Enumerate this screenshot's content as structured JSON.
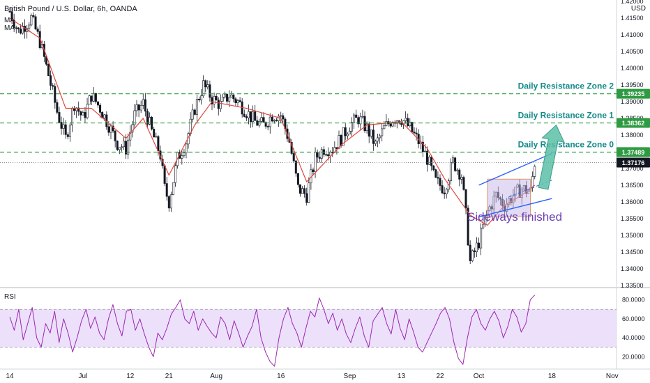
{
  "header": {
    "symbol_title": "British Pound / U.S. Dollar, 6h, OANDA",
    "currency": "USD",
    "indicator_main": "MA",
    "indicator_main2": "MA",
    "indicator_sub": "RSI"
  },
  "colors": {
    "up": "#131722",
    "down": "#131722",
    "ma": "#e0463b",
    "rsi": "#9c27b0",
    "rsi_band": "#ece0fb",
    "resistance": "#2e9b42",
    "annotation": "#138a8a",
    "sideways_text": "#6a3fb5",
    "channel": "#2962ff",
    "arrow": "#5bbfa6",
    "box_fill": "#c7b8e8",
    "box_stroke": "#e0956b"
  },
  "chart_data": [
    {
      "type": "candlestick",
      "title": "British Pound / U.S. Dollar, 6h, OANDA",
      "y_range": [
        1.33385,
        1.42
      ],
      "y_ticks": [
        "1.42000",
        "1.41500",
        "1.41000",
        "1.40500",
        "1.40000",
        "1.39500",
        "1.39000",
        "1.38500",
        "1.38000",
        "1.37500",
        "1.37000",
        "1.36500",
        "1.36000",
        "1.35500",
        "1.35000",
        "1.34500",
        "1.34000",
        "1.33500"
      ],
      "x_ticks": [
        "14",
        "Jul",
        "12",
        "21",
        "Aug",
        "16",
        "Sep",
        "13",
        "22",
        "Oct",
        "18",
        "Nov"
      ],
      "price_path": [
        {
          "x": "Jun 14",
          "y": 1.417
        },
        {
          "x": "Jun 16",
          "y": 1.411
        },
        {
          "x": "Jun 19",
          "y": 1.415
        },
        {
          "x": "Jun 21",
          "y": 1.408
        },
        {
          "x": "Jun 23",
          "y": 1.398
        },
        {
          "x": "Jun 25",
          "y": 1.387
        },
        {
          "x": "Jun 27",
          "y": 1.379
        },
        {
          "x": "Jun 29",
          "y": 1.3895
        },
        {
          "x": "Jul 1",
          "y": 1.385
        },
        {
          "x": "Jul 3",
          "y": 1.392
        },
        {
          "x": "Jul 5",
          "y": 1.388
        },
        {
          "x": "Jul 7",
          "y": 1.383
        },
        {
          "x": "Jul 9",
          "y": 1.3775
        },
        {
          "x": "Jul 11",
          "y": 1.376
        },
        {
          "x": "Jul 13",
          "y": 1.386
        },
        {
          "x": "Jul 15",
          "y": 1.3895
        },
        {
          "x": "Jul 17",
          "y": 1.381
        },
        {
          "x": "Jul 19",
          "y": 1.374
        },
        {
          "x": "Jul 20",
          "y": 1.364
        },
        {
          "x": "Jul 21",
          "y": 1.36
        },
        {
          "x": "Jul 23",
          "y": 1.373
        },
        {
          "x": "Jul 25",
          "y": 1.378
        },
        {
          "x": "Jul 27",
          "y": 1.388
        },
        {
          "x": "Jul 29",
          "y": 1.395
        },
        {
          "x": "Jul 31",
          "y": 1.391
        },
        {
          "x": "Aug 2",
          "y": 1.389
        },
        {
          "x": "Aug 4",
          "y": 1.392
        },
        {
          "x": "Aug 6",
          "y": 1.39
        },
        {
          "x": "Aug 8",
          "y": 1.387
        },
        {
          "x": "Aug 10",
          "y": 1.384
        },
        {
          "x": "Aug 12",
          "y": 1.383
        },
        {
          "x": "Aug 14",
          "y": 1.386
        },
        {
          "x": "Aug 16",
          "y": 1.386
        },
        {
          "x": "Aug 18",
          "y": 1.378
        },
        {
          "x": "Aug 20",
          "y": 1.364
        },
        {
          "x": "Aug 22",
          "y": 1.362
        },
        {
          "x": "Aug 24",
          "y": 1.373
        },
        {
          "x": "Aug 26",
          "y": 1.376
        },
        {
          "x": "Aug 28",
          "y": 1.376
        },
        {
          "x": "Aug 30",
          "y": 1.379
        },
        {
          "x": "Sep 1",
          "y": 1.383
        },
        {
          "x": "Sep 3",
          "y": 1.385
        },
        {
          "x": "Sep 5",
          "y": 1.382
        },
        {
          "x": "Sep 7",
          "y": 1.377
        },
        {
          "x": "Sep 9",
          "y": 1.382
        },
        {
          "x": "Sep 11",
          "y": 1.385
        },
        {
          "x": "Sep 13",
          "y": 1.385
        },
        {
          "x": "Sep 15",
          "y": 1.382
        },
        {
          "x": "Sep 17",
          "y": 1.378
        },
        {
          "x": "Sep 19",
          "y": 1.373
        },
        {
          "x": "Sep 21",
          "y": 1.366
        },
        {
          "x": "Sep 23",
          "y": 1.364
        },
        {
          "x": "Sep 25",
          "y": 1.372
        },
        {
          "x": "Sep 27",
          "y": 1.368
        },
        {
          "x": "Sep 28",
          "y": 1.356
        },
        {
          "x": "Sep 29",
          "y": 1.342
        },
        {
          "x": "Oct 1",
          "y": 1.348
        },
        {
          "x": "Oct 3",
          "y": 1.357
        },
        {
          "x": "Oct 5",
          "y": 1.362
        },
        {
          "x": "Oct 7",
          "y": 1.359
        },
        {
          "x": "Oct 9",
          "y": 1.362
        },
        {
          "x": "Oct 11",
          "y": 1.364
        },
        {
          "x": "Oct 13",
          "y": 1.363
        },
        {
          "x": "Oct 14",
          "y": 1.3718
        }
      ],
      "ma_path": [
        {
          "x": "Jun 14",
          "y": 1.415
        },
        {
          "x": "Jun 21",
          "y": 1.409
        },
        {
          "x": "Jun 27",
          "y": 1.388
        },
        {
          "x": "Jul 3",
          "y": 1.388
        },
        {
          "x": "Jul 11",
          "y": 1.379
        },
        {
          "x": "Jul 15",
          "y": 1.385
        },
        {
          "x": "Jul 21",
          "y": 1.368
        },
        {
          "x": "Jul 27",
          "y": 1.383
        },
        {
          "x": "Jul 31",
          "y": 1.39
        },
        {
          "x": "Aug 8",
          "y": 1.388
        },
        {
          "x": "Aug 16",
          "y": 1.385
        },
        {
          "x": "Aug 22",
          "y": 1.366
        },
        {
          "x": "Aug 30",
          "y": 1.377
        },
        {
          "x": "Sep 5",
          "y": 1.383
        },
        {
          "x": "Sep 13",
          "y": 1.384
        },
        {
          "x": "Sep 19",
          "y": 1.376
        },
        {
          "x": "Sep 23",
          "y": 1.367
        },
        {
          "x": "Sep 29",
          "y": 1.356
        },
        {
          "x": "Oct 3",
          "y": 1.353
        },
        {
          "x": "Oct 7",
          "y": 1.359
        },
        {
          "x": "Oct 11",
          "y": 1.362
        },
        {
          "x": "Oct 14",
          "y": 1.365
        }
      ],
      "horizontal_levels": [
        {
          "value": 1.39235,
          "label": "1.39235",
          "annotation": "Daily Resistance Zone 2"
        },
        {
          "value": 1.38362,
          "label": "1.38362",
          "annotation": "Daily Resistance Zone 1"
        },
        {
          "value": 1.37489,
          "label": "1.37489",
          "annotation": "Daily Resistance Zone 0"
        }
      ],
      "last_price": {
        "value": 1.37176,
        "label": "1.37176"
      },
      "annotations": [
        "Sideways finished"
      ],
      "channel": {
        "from": "Oct 1",
        "to": "Oct 18",
        "upper": [
          1.365,
          1.3745
        ],
        "lower": [
          1.3555,
          1.361
        ]
      },
      "projection_arrow": {
        "from": {
          "x": "Oct 16",
          "y": 1.364
        },
        "to": {
          "x": "Oct 19",
          "y": 1.383
        }
      }
    },
    {
      "type": "line",
      "title": "RSI",
      "y_range": [
        10,
        90
      ],
      "y_ticks": [
        "80.0000",
        "60.0000",
        "40.0000",
        "20.0000"
      ],
      "band": [
        30,
        70
      ],
      "series": [
        {
          "name": "RSI",
          "values": [
            62,
            48,
            70,
            38,
            55,
            72,
            40,
            30,
            55,
            45,
            68,
            35,
            60,
            45,
            25,
            40,
            58,
            70,
            50,
            62,
            45,
            38,
            60,
            75,
            55,
            42,
            68,
            70,
            48,
            60,
            44,
            30,
            20,
            45,
            38,
            50,
            65,
            72,
            80,
            60,
            55,
            68,
            48,
            60,
            52,
            45,
            40,
            62,
            55,
            38,
            58,
            45,
            30,
            42,
            52,
            70,
            40,
            25,
            15,
            10,
            40,
            60,
            72,
            55,
            45,
            30,
            50,
            68,
            62,
            82,
            70,
            55,
            66,
            48,
            60,
            44,
            35,
            50,
            62,
            42,
            30,
            58,
            65,
            72,
            55,
            44,
            70,
            50,
            38,
            60,
            46,
            30,
            25,
            35,
            45,
            55,
            66,
            72,
            60,
            35,
            18,
            12,
            40,
            62,
            70,
            55,
            48,
            60,
            68,
            58,
            40,
            52,
            70,
            62,
            46,
            55,
            80,
            85
          ]
        }
      ]
    }
  ]
}
